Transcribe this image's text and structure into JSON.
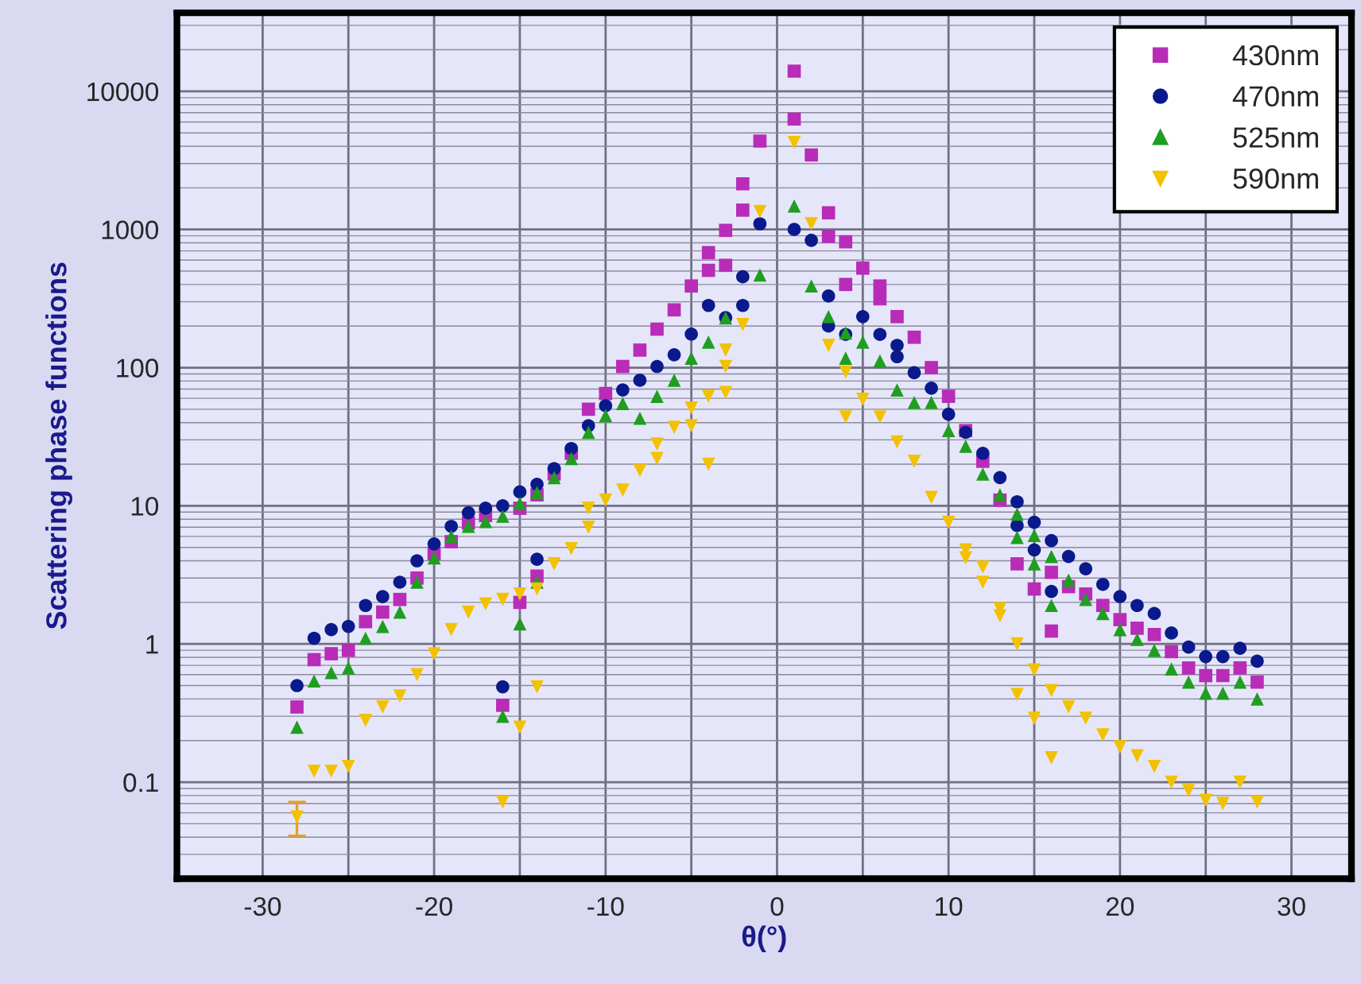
{
  "chart_data": {
    "type": "scatter",
    "xlabel": "θ(°)",
    "ylabel": "Scattering phase functions",
    "log": "y",
    "xlim": [
      -35,
      33.5
    ],
    "ylim": [
      0.02,
      37000
    ],
    "xticks": [
      -30,
      {
        "value": -25,
        "label": null
      },
      -20,
      {
        "value": -15,
        "label": null
      },
      -10,
      {
        "value": -5,
        "label": null
      },
      0,
      {
        "value": 5,
        "label": null
      },
      10,
      {
        "value": 15,
        "label": null
      },
      20,
      {
        "value": 25,
        "label": null
      },
      30
    ],
    "yticks": [
      0.1,
      1,
      10,
      100,
      1000,
      10000
    ],
    "grid": true,
    "legend": "top right",
    "series": [
      {
        "name": "430nm",
        "color": "#b82cb8",
        "marker": "square",
        "x": [
          -28,
          -27,
          -26,
          -25,
          -24,
          -23,
          -22,
          -21,
          -20,
          -19,
          -18,
          -17,
          -16,
          -15,
          -15,
          -14,
          -14,
          -13,
          -12,
          -11,
          -10,
          -9,
          -8,
          -7,
          -6,
          -5,
          -4,
          -4,
          -3,
          -3,
          -2,
          -2,
          -1,
          1,
          1,
          2,
          3,
          3,
          4,
          4,
          5,
          6,
          6,
          7,
          8,
          9,
          10,
          11,
          12,
          13,
          14,
          15,
          16,
          16,
          17,
          18,
          19,
          20,
          21,
          22,
          23,
          24,
          25,
          26,
          27,
          28
        ],
        "values": [
          0.35,
          0.77,
          0.85,
          0.9,
          1.45,
          1.7,
          2.1,
          3.0,
          4.5,
          5.5,
          7.5,
          8.5,
          0.36,
          9.6,
          2.0,
          3.1,
          12,
          17,
          24,
          50,
          65,
          102,
          134,
          190,
          262,
          390,
          680,
          506,
          985,
          550,
          2140,
          1380,
          4360,
          14000,
          6300,
          3460,
          1320,
          890,
          815,
          400,
          525,
          390,
          315,
          234,
          166,
          100,
          62,
          35,
          21,
          11,
          3.8,
          2.5,
          3.3,
          1.24,
          2.6,
          2.3,
          1.9,
          1.5,
          1.3,
          1.17,
          0.88,
          0.67,
          0.59,
          0.59,
          0.67,
          0.53
        ]
      },
      {
        "name": "470nm",
        "color": "#0a1a8c",
        "marker": "circle",
        "x": [
          -28,
          -27,
          -26,
          -25,
          -24,
          -23,
          -22,
          -21,
          -20,
          -19,
          -18,
          -17,
          -16,
          -16,
          -15,
          -14,
          -14,
          -13,
          -12,
          -11,
          -10,
          -9,
          -8,
          -7,
          -6,
          -5,
          -4,
          -3,
          -2,
          -2,
          -1,
          1,
          2,
          3,
          3,
          4,
          5,
          6,
          7,
          7,
          8,
          9,
          10,
          11,
          12,
          13,
          14,
          14,
          15,
          15,
          16,
          16,
          17,
          18,
          19,
          20,
          21,
          22,
          23,
          24,
          25,
          26,
          27,
          28
        ],
        "values": [
          0.5,
          1.1,
          1.27,
          1.34,
          1.9,
          2.2,
          2.8,
          4.0,
          5.3,
          7.1,
          8.9,
          9.6,
          10,
          0.49,
          12.6,
          4.1,
          14.3,
          18.6,
          26,
          38,
          53,
          69,
          81,
          102,
          124,
          175,
          282,
          230,
          455,
          282,
          1100,
          1000,
          835,
          330,
          200,
          174,
          234,
          174,
          145,
          120,
          92,
          71,
          46,
          34,
          24,
          16,
          10.7,
          7.2,
          7.6,
          4.8,
          5.6,
          2.4,
          4.3,
          3.5,
          2.7,
          2.2,
          1.9,
          1.66,
          1.2,
          0.95,
          0.81,
          0.81,
          0.93,
          0.75
        ]
      },
      {
        "name": "525nm",
        "color": "#1f9e1f",
        "marker": "triangle",
        "x": [
          -28,
          -27,
          -26,
          -25,
          -24,
          -23,
          -22,
          -21,
          -20,
          -19,
          -18,
          -17,
          -16,
          -16,
          -15,
          -15,
          -14,
          -14,
          -13,
          -12,
          -11,
          -10,
          -9,
          -8,
          -7,
          -6,
          -5,
          -4,
          -3,
          -1,
          1,
          2,
          3,
          4,
          4,
          5,
          6,
          7,
          8,
          9,
          10,
          11,
          12,
          13,
          14,
          14,
          15,
          15,
          16,
          16,
          17,
          18,
          19,
          20,
          21,
          22,
          23,
          24,
          25,
          26,
          27,
          28
        ],
        "values": [
          0.25,
          0.54,
          0.62,
          0.67,
          1.1,
          1.34,
          1.7,
          2.8,
          4.2,
          6.0,
          7.1,
          7.7,
          8.4,
          0.3,
          10.4,
          1.4,
          2.8,
          12.5,
          16,
          22,
          34,
          45,
          55,
          43,
          62,
          81,
          117,
          153,
          229,
          468,
          1480,
          390,
          234,
          178,
          117,
          153,
          112,
          69,
          56,
          56,
          35,
          27,
          17,
          12,
          8.7,
          5.9,
          6.1,
          3.8,
          4.3,
          1.9,
          2.9,
          2.1,
          1.66,
          1.27,
          1.08,
          0.9,
          0.66,
          0.53,
          0.44,
          0.44,
          0.53,
          0.4
        ]
      },
      {
        "name": "590nm",
        "color": "#f2c200",
        "marker": "triangle_down",
        "x": [
          -28,
          -27,
          -26,
          -25,
          -24,
          -23,
          -22,
          -21,
          -20,
          -19,
          -18,
          -17,
          -16,
          -16,
          -15,
          -15,
          -14,
          -14,
          -13,
          -12,
          -11,
          -11,
          -10,
          -9,
          -8,
          -7,
          -7,
          -6,
          -5,
          -5,
          -4,
          -4,
          -3,
          -3,
          -3,
          -2,
          -1,
          1,
          2,
          3,
          4,
          4,
          5,
          6,
          7,
          8,
          9,
          10,
          11,
          11,
          12,
          12,
          13,
          13,
          14,
          14,
          15,
          15,
          16,
          16,
          17,
          18,
          19,
          20,
          21,
          22,
          23,
          24,
          25,
          26,
          27,
          28
        ],
        "values": [
          0.056,
          0.12,
          0.12,
          0.13,
          0.28,
          0.35,
          0.42,
          0.6,
          0.85,
          1.27,
          1.7,
          1.95,
          2.1,
          0.072,
          2.3,
          0.25,
          0.49,
          2.5,
          3.8,
          4.9,
          7.0,
          9.6,
          11,
          13,
          18,
          28,
          22,
          37,
          51,
          38,
          62,
          20,
          66,
          102,
          134,
          205,
          1350,
          4260,
          1100,
          145,
          93,
          44,
          59,
          44,
          29,
          21,
          11.5,
          7.6,
          4.8,
          4.2,
          3.6,
          2.8,
          1.8,
          1.6,
          1.0,
          0.43,
          0.65,
          0.29,
          0.46,
          0.15,
          0.35,
          0.29,
          0.22,
          0.18,
          0.155,
          0.13,
          0.1,
          0.087,
          0.074,
          0.07,
          0.1,
          0.072
        ],
        "errors": [
          [
            0.041,
            0.072
          ],
          null,
          null,
          null,
          null,
          null,
          null,
          null,
          null,
          null,
          null,
          null,
          null,
          null,
          null,
          null,
          null,
          null,
          null,
          null,
          null,
          null,
          null,
          null,
          null,
          null,
          null,
          null,
          null,
          null,
          null,
          null,
          null,
          null,
          null,
          null,
          null,
          null,
          null,
          null,
          null,
          null,
          null,
          null,
          null,
          null,
          null,
          null,
          null,
          null,
          null,
          null,
          null,
          null,
          null,
          null,
          null,
          null,
          null,
          null,
          null,
          null,
          null,
          null,
          null,
          null,
          null,
          null,
          null,
          null,
          null,
          null
        ]
      }
    ]
  }
}
